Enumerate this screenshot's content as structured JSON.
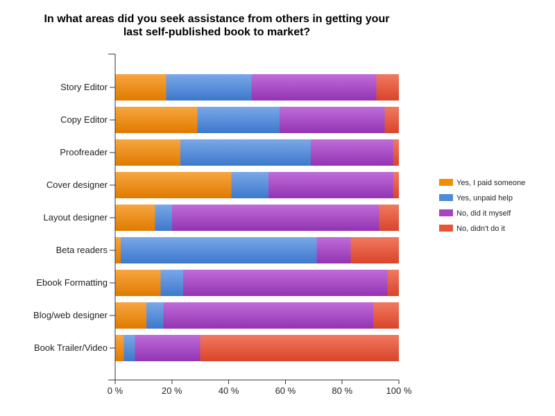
{
  "chart_data": {
    "type": "bar",
    "orientation": "horizontal",
    "stacked": true,
    "title_lines": [
      "In what areas did you seek assistance from others in getting your",
      "last self-published book to market?"
    ],
    "categories": [
      "Story Editor",
      "Copy Editor",
      "Proofreader",
      "Cover designer",
      "Layout designer",
      "Beta readers",
      "Ebook Formatting",
      "Blog/web designer",
      "Book Trailer/Video"
    ],
    "series": [
      {
        "name": "Yes, I paid someone",
        "color": "#f48b00",
        "values": [
          18,
          29,
          23,
          41,
          14,
          2,
          16,
          11,
          3
        ]
      },
      {
        "name": "Yes, unpaid help",
        "color": "#4f8bdb",
        "values": [
          30,
          29,
          46,
          13,
          6,
          69,
          8,
          6,
          4
        ]
      },
      {
        "name": "No, did it myself",
        "color": "#a544c4",
        "values": [
          44,
          37,
          29,
          44,
          73,
          12,
          72,
          74,
          23
        ]
      },
      {
        "name": "No, didn't do it",
        "color": "#e85536",
        "values": [
          8,
          5,
          2,
          2,
          7,
          17,
          4,
          9,
          70
        ]
      }
    ],
    "xlim": [
      0,
      100
    ],
    "xticks": [
      "0 %",
      "20 %",
      "40 %",
      "60 %",
      "80 %",
      "100 %"
    ],
    "xlabel": "",
    "ylabel": "",
    "grid": false,
    "legend_position": "right"
  }
}
